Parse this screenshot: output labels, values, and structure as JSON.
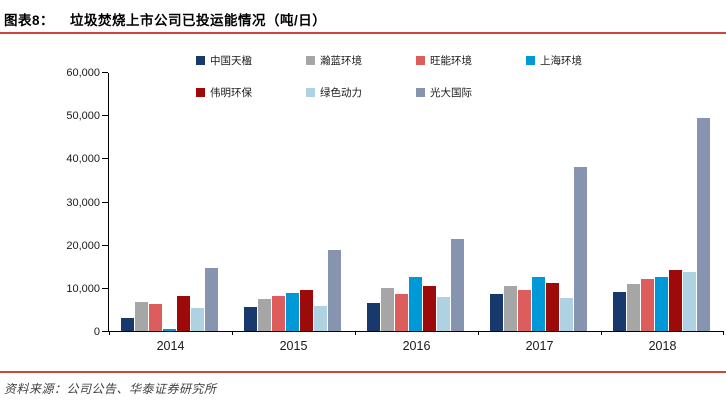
{
  "header": {
    "figure_label": "图表8：",
    "title": "垃圾焚烧上市公司已投运能情况（吨/日）"
  },
  "footer": {
    "source": "资料来源：公司公告、华泰证券研究所"
  },
  "colors": {
    "rule_red": "#d0453a",
    "axis": "#000000",
    "text": "#1a1a1a",
    "source_text": "#3f3f3f"
  },
  "chart_data": {
    "type": "bar",
    "title": "垃圾焚烧上市公司已投运能情况（吨/日）",
    "xlabel": "",
    "ylabel": "",
    "categories": [
      "2014",
      "2015",
      "2016",
      "2017",
      "2018"
    ],
    "series": [
      {
        "name": "中国天楹",
        "color": "#17396b",
        "values": [
          3000,
          5600,
          6400,
          8500,
          9000
        ]
      },
      {
        "name": "瀚蓝环境",
        "color": "#a6a6a6",
        "values": [
          6800,
          7500,
          9900,
          10500,
          10900
        ]
      },
      {
        "name": "旺能环境",
        "color": "#dd5c5c",
        "values": [
          6300,
          8000,
          8500,
          9500,
          12100
        ]
      },
      {
        "name": "上海环境",
        "color": "#0099d8",
        "values": [
          400,
          8900,
          12500,
          12400,
          12500
        ]
      },
      {
        "name": "伟明环保",
        "color": "#9c0a0a",
        "values": [
          8100,
          9400,
          10400,
          11200,
          14100
        ]
      },
      {
        "name": "绿色动力",
        "color": "#afd2e2",
        "values": [
          5300,
          5900,
          7800,
          7700,
          13600
        ]
      },
      {
        "name": "光大国际",
        "color": "#8794b0",
        "values": [
          14500,
          18700,
          21300,
          37900,
          49300
        ]
      }
    ],
    "ylim": [
      0,
      60000
    ],
    "ytick_step": 10000,
    "ytick_labels": [
      "0",
      "10,000",
      "20,000",
      "30,000",
      "40,000",
      "50,000",
      "60,000"
    ],
    "legend_position": "top",
    "grid": false
  }
}
